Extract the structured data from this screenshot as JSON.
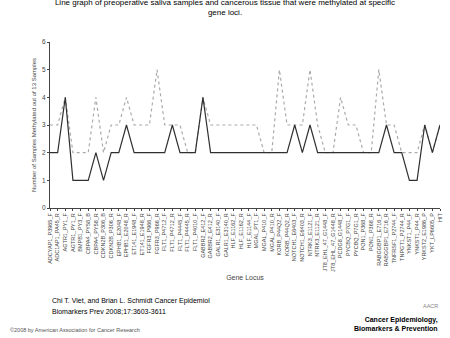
{
  "chart_data": {
    "type": "line",
    "title": "Line graph of preoperative saliva samples and cancerous tissue that were methylated at specific\ngene loci.",
    "xlabel": "Gene Locus",
    "ylabel": "Number of Samples Methylated out of 13 Samples",
    "categories": [
      "ADCYAP1_P3965_F",
      "ADC1AP1_PA45_R",
      "AGTR1_PY1_F",
      "AGTR1_PY1_R",
      "BMPB1_PY3_F",
      "CBPA4_PY58_B",
      "CBPA4_PY58_R",
      "CDKN2B_P306_B",
      "CDKN2B_P306_R",
      "EPHB1_E2048_F",
      "EPHB1_E2048_R",
      "ET141_E1948_F",
      "ET141_E1948_R",
      "FGFR3_P966_F",
      "FGFR3_P966_R",
      "FLT1_P4712_F",
      "FLT1_P4712_R",
      "FLT1_P4445_F",
      "FLT1_P4445_R",
      "FLT1_P4010_F",
      "GABBR2_E412_F",
      "GABBR2_E412_R",
      "GALR1_E3140_F",
      "GALR1_E3140_R",
      "HLF_E1162_F",
      "HLF_E1162_R",
      "HLF_E1144_F",
      "MGAL_PT1_F",
      "MGAL_P410_F",
      "MGAL_P410_R",
      "KORB_P44Q2_F",
      "KORB_P44Q2_R",
      "NOTCH1_E6403_F",
      "NOTCH1_E6403_R",
      "NTRK3_E1121_F",
      "NTRK3_E1121_R",
      "JT8_EHL_47_G1448_F",
      "JT8_EHL_47_G1448_R",
      "PCDG8_G1448_F",
      "PYCBQ_P7G1_F",
      "PYCBQ_P7G1_R",
      "PON1_P368_F",
      "PON1_P368_R",
      "RABGGBP1_E716_F",
      "RABGGBP1_E716_R",
      "TNFRSF1_P2744_F",
      "TNPGT1_P2744_R",
      "YNKST1_P44_F",
      "YNKST1_P44_R",
      "YRKST2_E1986_P",
      "YKT_LP6605_P",
      "HIT"
    ],
    "series": [
      {
        "color": "#aaaaaa",
        "line_style": "dotted",
        "values": [
          3,
          3,
          4,
          2,
          2,
          2,
          4,
          2,
          3,
          3,
          4,
          3,
          3,
          3,
          5,
          3,
          3,
          3,
          2,
          2,
          4,
          3,
          3,
          3,
          3,
          3,
          3,
          3,
          2,
          2,
          5,
          3,
          3,
          3,
          5,
          3,
          2,
          2,
          4,
          3,
          3,
          2,
          2,
          5,
          3,
          3,
          2,
          2,
          2,
          3,
          2,
          3
        ]
      },
      {
        "color": "#303030",
        "line_style": "solid",
        "values": [
          2,
          2,
          4,
          1,
          1,
          1,
          2,
          1,
          2,
          2,
          3,
          2,
          2,
          2,
          2,
          2,
          3,
          2,
          2,
          2,
          4,
          2,
          2,
          2,
          2,
          2,
          2,
          2,
          2,
          2,
          2,
          2,
          3,
          2,
          3,
          2,
          2,
          2,
          2,
          2,
          2,
          2,
          2,
          2,
          3,
          2,
          2,
          1,
          1,
          3,
          2,
          3
        ]
      }
    ],
    "ylim": [
      0,
      6
    ],
    "yticks": [
      0,
      1,
      2,
      3,
      4,
      5,
      6
    ],
    "grid": false,
    "annotations": [
      "Chi T. Viet, and Brian L. Schmidt Cancer Epidemiol",
      "Biomarkers Prev 2008;17:3603-3611",
      "©2008 by American Association for Cancer Research",
      "AACR",
      "Cancer Epidemiology,\nBiomarkers & Prevention"
    ]
  }
}
